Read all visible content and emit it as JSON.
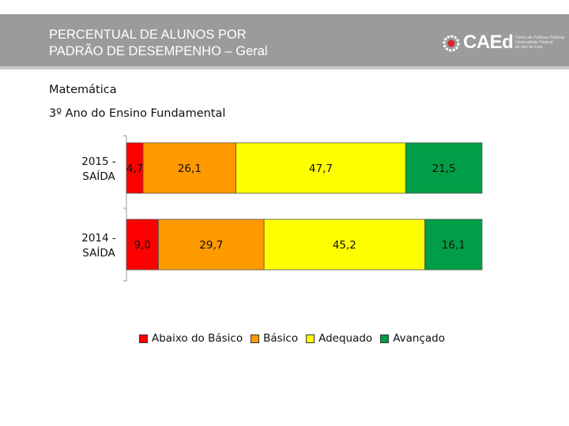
{
  "header": {
    "title_line1": "PERCENTUAL DE ALUNOS POR",
    "title_line2": "PADRÃO DE DESEMPENHO – Geral",
    "logo_text": "CAEd",
    "logo_sub_line1": "Centro de Políticas Públicas",
    "logo_sub_line2": "Universidade Federal",
    "logo_sub_line3": "de Juiz de Fora"
  },
  "subject": "Matemática",
  "grade": "3º Ano do Ensino Fundamental",
  "chart_data": {
    "type": "bar",
    "orientation": "horizontal",
    "stacked": true,
    "categories": [
      "2015 - SAÍDA",
      "2014 - SAÍDA"
    ],
    "category_lines": [
      [
        "2015 -",
        "SAÍDA"
      ],
      [
        "2014 -",
        "SAÍDA"
      ]
    ],
    "series": [
      {
        "name": "Abaixo do Básico",
        "color": "#ff0000",
        "values": [
          4.7,
          9.0
        ],
        "labels": [
          "4,7",
          "9,0"
        ]
      },
      {
        "name": "Básico",
        "color": "#ff9900",
        "values": [
          26.1,
          29.7
        ],
        "labels": [
          "26,1",
          "29,7"
        ]
      },
      {
        "name": "Adequado",
        "color": "#ffff00",
        "values": [
          47.7,
          45.2
        ],
        "labels": [
          "47,7",
          "45,2"
        ]
      },
      {
        "name": "Avançado",
        "color": "#009e47",
        "values": [
          21.5,
          16.1
        ],
        "labels": [
          "21,5",
          "16,1"
        ]
      }
    ],
    "xlim": [
      0,
      100
    ],
    "legend_position": "bottom"
  }
}
